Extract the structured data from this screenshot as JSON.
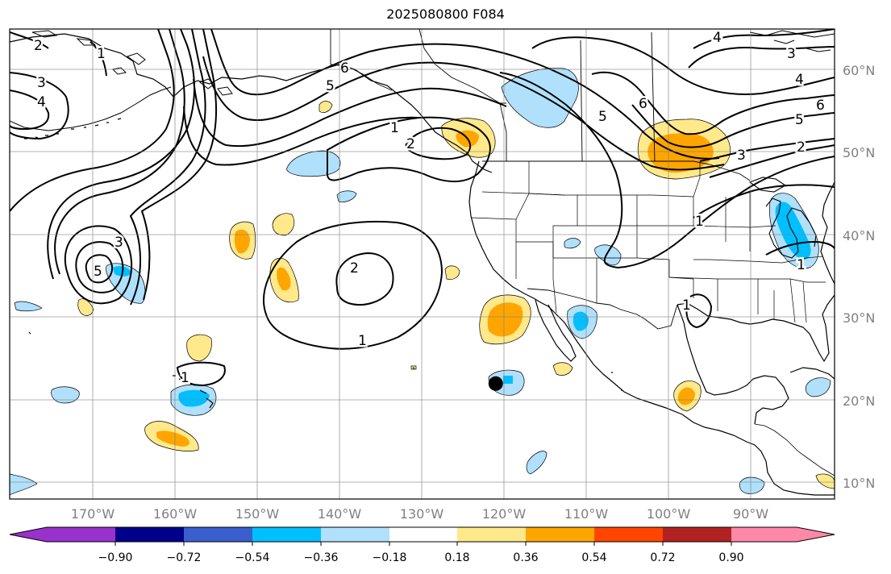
{
  "title": "2025080800 F084",
  "colors": {
    "neg_strong": "#00bfff",
    "neg_weak": "#b0e0fb",
    "pos_weak": "#ffe98a",
    "pos_mid": "#ffa500",
    "contour": "#000000",
    "grid": "#808080",
    "colorbar": [
      "#9932cc",
      "#00008b",
      "#3a5fcd",
      "#00bfff",
      "#b0e0fb",
      "#ffffff",
      "#ffe98a",
      "#ffa500",
      "#ff4500",
      "#b22222",
      "#ff88aa"
    ]
  },
  "lat_labels": [
    "60°N",
    "50°N",
    "40°N",
    "30°N",
    "20°N",
    "10°N"
  ],
  "lon_labels": [
    "170°W",
    "160°W",
    "150°W",
    "140°W",
    "130°W",
    "120°W",
    "110°W",
    "100°W",
    "90°W"
  ],
  "colorbar_ticks": [
    "−0.90",
    "−0.72",
    "−0.54",
    "−0.36",
    "−0.18",
    "0.18",
    "0.36",
    "0.54",
    "0.72",
    "0.90"
  ],
  "contour_labels": {
    "c_2a": "2",
    "c_3a": "3",
    "c_4a": "4",
    "c_1a": "1",
    "c_3b": "3",
    "c_5a": "5",
    "c_6a": "6",
    "c_5b": "5",
    "c_1b": "1",
    "c_2b": "2",
    "c_2c": "2",
    "c_1c": "1",
    "c_1d": "1",
    "c_4b": "4",
    "c_3c": "3",
    "c_4c": "4",
    "c_6b": "6",
    "c_5c": "5",
    "c_2d": "2",
    "c_3d": "3",
    "c_5d": "5",
    "c_6c": "6",
    "c_1e": "1",
    "c_1f": "1",
    "c_1g": "1"
  },
  "markers": [
    {
      "name": "storm-center-marker",
      "lon": -120.9,
      "lat": 21.8
    }
  ]
}
